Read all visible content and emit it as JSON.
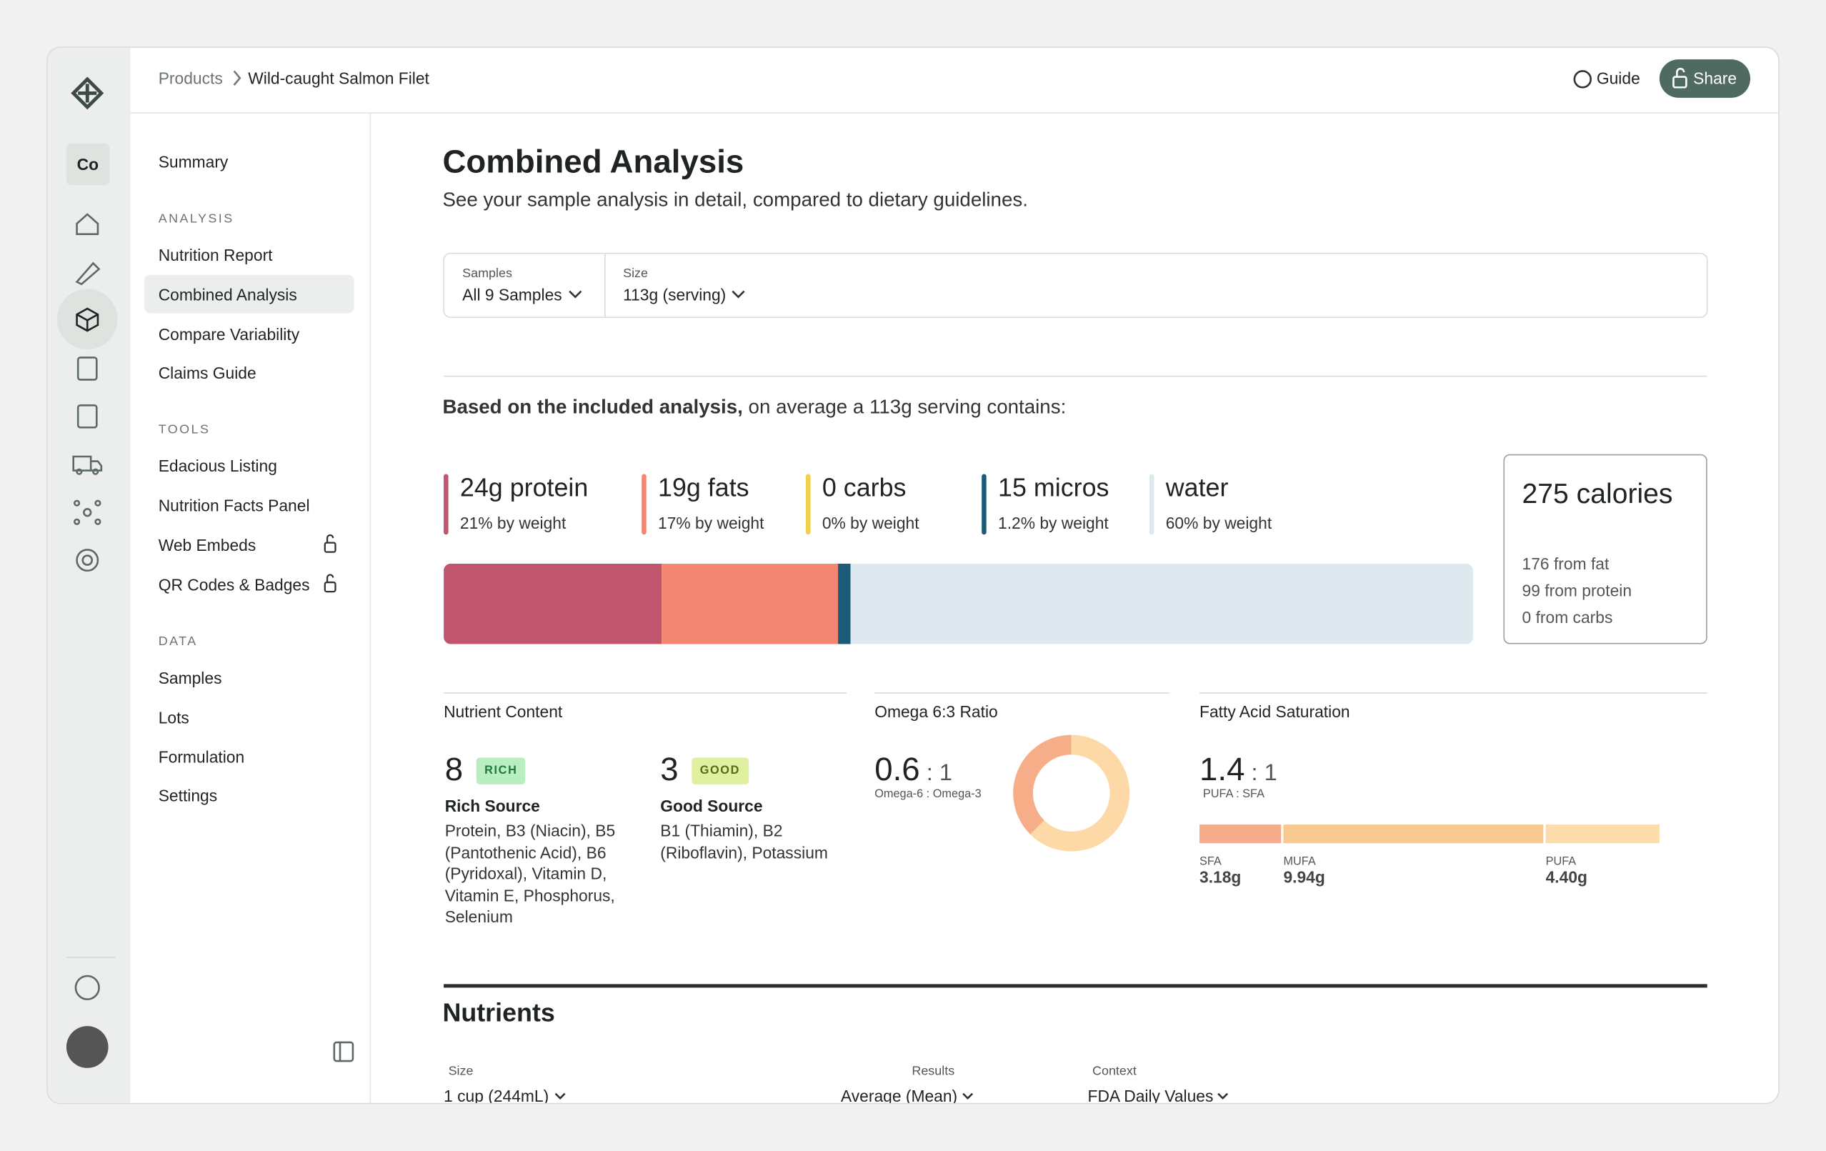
{
  "breadcrumb": {
    "parent": "Products",
    "current": "Wild-caught Salmon Filet"
  },
  "header_actions": {
    "guide": "Guide",
    "share": "Share"
  },
  "rail": {
    "workspace": "Co"
  },
  "sidebar": {
    "sections": [
      {
        "items": [
          {
            "label": "Summary"
          }
        ]
      },
      {
        "heading": "ANALYSIS",
        "items": [
          {
            "label": "Nutrition Report"
          },
          {
            "label": "Combined Analysis",
            "active": true
          },
          {
            "label": "Compare Variability"
          },
          {
            "label": "Claims Guide"
          }
        ]
      },
      {
        "heading": "TOOLS",
        "items": [
          {
            "label": "Edacious Listing"
          },
          {
            "label": "Nutrition Facts Panel"
          },
          {
            "label": "Web Embeds",
            "locked": true
          },
          {
            "label": "QR Codes & Badges",
            "locked": true
          }
        ]
      },
      {
        "heading": "DATA",
        "items": [
          {
            "label": "Samples"
          },
          {
            "label": "Lots"
          },
          {
            "label": "Formulation"
          },
          {
            "label": "Settings"
          }
        ]
      }
    ]
  },
  "page": {
    "title": "Combined Analysis",
    "subtitle": "See your sample analysis in detail, compared to dietary guidelines.",
    "filters": [
      {
        "label": "Samples",
        "value": "All 9 Samples"
      },
      {
        "label": "Size",
        "value": "113g (serving)"
      }
    ],
    "summary_bold": "Based on the included analysis,",
    "summary_rest": " on average a 113g serving contains:"
  },
  "composition": [
    {
      "label": "24g protein",
      "sub": "21% by weight",
      "value": 21,
      "color": "#c0566e"
    },
    {
      "label": "19g fats",
      "sub": "17% by weight",
      "value": 17,
      "color": "#f38672"
    },
    {
      "label": "0 carbs",
      "sub": "0% by weight",
      "value": 0,
      "color": "#f2d04a"
    },
    {
      "label": "15 micros",
      "sub": "1.2% by weight",
      "value": 1.2,
      "color": "#1c5a78"
    },
    {
      "label": "water",
      "sub": "60% by weight",
      "value": 60,
      "color": "#dde9ee"
    }
  ],
  "calories": {
    "total": "275 calories",
    "lines": [
      "176 from fat",
      "99 from protein",
      "0 from carbs"
    ]
  },
  "nutrient_content": {
    "title": "Nutrient Content",
    "groups": [
      {
        "count": "8",
        "badge": "RICH",
        "name": "Rich Source",
        "list": "Protein, B3 (Niacin), B5 (Pantothenic Acid), B6 (Pyridoxal), Vitamin D, Vitamin E, Phosphorus, Selenium"
      },
      {
        "count": "3",
        "badge": "GOOD",
        "name": "Good Source",
        "list": "B1 (Thiamin), B2 (Riboflavin), Potassium"
      }
    ]
  },
  "omega": {
    "title": "Omega 6:3 Ratio",
    "omega6": 0.6,
    "sep": ":",
    "omega3": 1,
    "caption": "Omega-6 : Omega-3",
    "colors": [
      "#f6ae88",
      "#fdd9a8"
    ]
  },
  "fatty": {
    "title": "Fatty Acid Saturation",
    "ratio": "1.4",
    "sep": ":",
    "ratio_right": "1",
    "caption": "PUFA : SFA",
    "segments": [
      {
        "name": "SFA",
        "value": 3.18,
        "value_label": "3.18g",
        "color": "#f6ab8a"
      },
      {
        "name": "MUFA",
        "value": 9.94,
        "value_label": "9.94g",
        "color": "#f8c88f"
      },
      {
        "name": "PUFA",
        "value": 4.4,
        "value_label": "4.40g",
        "color": "#fbdcaa"
      }
    ]
  },
  "nutrients": {
    "title": "Nutrients",
    "controls": [
      {
        "label": "Size",
        "value": "1 cup (244mL)"
      },
      {
        "label": "Results",
        "value": "Average (Mean)"
      },
      {
        "label": "Context",
        "value": "FDA Daily Values"
      }
    ]
  }
}
